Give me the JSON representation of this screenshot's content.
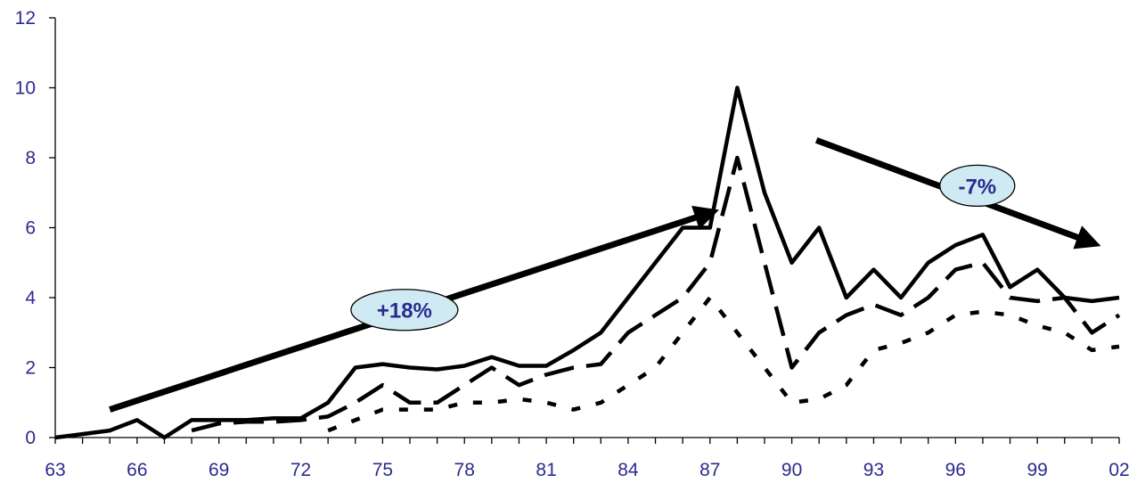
{
  "chart_data": {
    "type": "line",
    "title": "",
    "xlabel": "",
    "ylabel": "",
    "x": [
      1963,
      1964,
      1965,
      1966,
      1967,
      1968,
      1969,
      1970,
      1971,
      1972,
      1973,
      1974,
      1975,
      1976,
      1977,
      1978,
      1979,
      1980,
      1981,
      1982,
      1983,
      1984,
      1985,
      1986,
      1987,
      1988,
      1989,
      1990,
      1991,
      1992,
      1993,
      1994,
      1995,
      1996,
      1997,
      1998,
      1999,
      2000,
      2001,
      2002
    ],
    "x_tick_labels": [
      "63",
      "66",
      "69",
      "72",
      "75",
      "78",
      "81",
      "84",
      "87",
      "90",
      "93",
      "96",
      "99",
      "02"
    ],
    "x_tick_values": [
      1963,
      1966,
      1969,
      1972,
      1975,
      1978,
      1981,
      1984,
      1987,
      1990,
      1993,
      1996,
      1999,
      2002
    ],
    "xlim": [
      1963,
      2002
    ],
    "ylim": [
      0,
      12
    ],
    "y_ticks": [
      0,
      2,
      4,
      6,
      8,
      10,
      12
    ],
    "grid": false,
    "legend": "none",
    "series": [
      {
        "style": "solid",
        "color": "#000000",
        "values": [
          0,
          0.1,
          0.2,
          0.5,
          0,
          0.5,
          0.5,
          0.5,
          0.55,
          0.55,
          1.0,
          2.0,
          2.1,
          2.0,
          1.95,
          2.05,
          2.3,
          2.05,
          2.05,
          2.5,
          3.0,
          4.0,
          5.0,
          6.0,
          6.0,
          10.0,
          7.0,
          5.0,
          6.0,
          4.0,
          4.8,
          4.0,
          5.0,
          5.5,
          5.8,
          4.3,
          4.8,
          4.0,
          3.9,
          4.0
        ]
      },
      {
        "style": "dashed",
        "color": "#000000",
        "values": [
          null,
          null,
          null,
          null,
          null,
          0.2,
          0.4,
          0.45,
          0.45,
          0.5,
          0.6,
          1.0,
          1.5,
          1.0,
          1.0,
          1.5,
          2.0,
          1.5,
          1.8,
          2.0,
          2.1,
          3.0,
          3.5,
          4.0,
          5.0,
          8.0,
          5.0,
          2.0,
          3.0,
          3.5,
          3.8,
          3.5,
          4.0,
          4.8,
          5.0,
          4.0,
          3.9,
          4.0,
          3.0,
          3.5
        ]
      },
      {
        "style": "dotted",
        "color": "#000000",
        "values": [
          null,
          null,
          null,
          null,
          null,
          null,
          null,
          null,
          null,
          null,
          0.2,
          0.5,
          0.8,
          0.8,
          0.8,
          1.0,
          1.0,
          1.1,
          1.0,
          0.8,
          1.0,
          1.5,
          2.0,
          3.0,
          4.0,
          3.0,
          2.0,
          1.0,
          1.1,
          1.5,
          2.5,
          2.7,
          3.0,
          3.5,
          3.6,
          3.5,
          3.2,
          3.0,
          2.5,
          2.6
        ]
      }
    ],
    "annotations": [
      {
        "type": "arrow",
        "from": [
          1965,
          0.8
        ],
        "to": [
          1886.9,
          6.4
        ],
        "end_x": 1986.9,
        "end_y": 6.4
      },
      {
        "type": "label",
        "text": "+18%",
        "x": 1975.8,
        "y": 3.65
      },
      {
        "type": "arrow",
        "from": [
          1990.9,
          8.5
        ],
        "to": [
          2000.9,
          5.6
        ]
      },
      {
        "type": "label",
        "text": "-7%",
        "x": 1996.8,
        "y": 7.2
      }
    ],
    "annotation_style": {
      "label_fill": "#cfeaf2",
      "label_stroke": "#000000",
      "text_color": "#2b2b8f"
    }
  }
}
